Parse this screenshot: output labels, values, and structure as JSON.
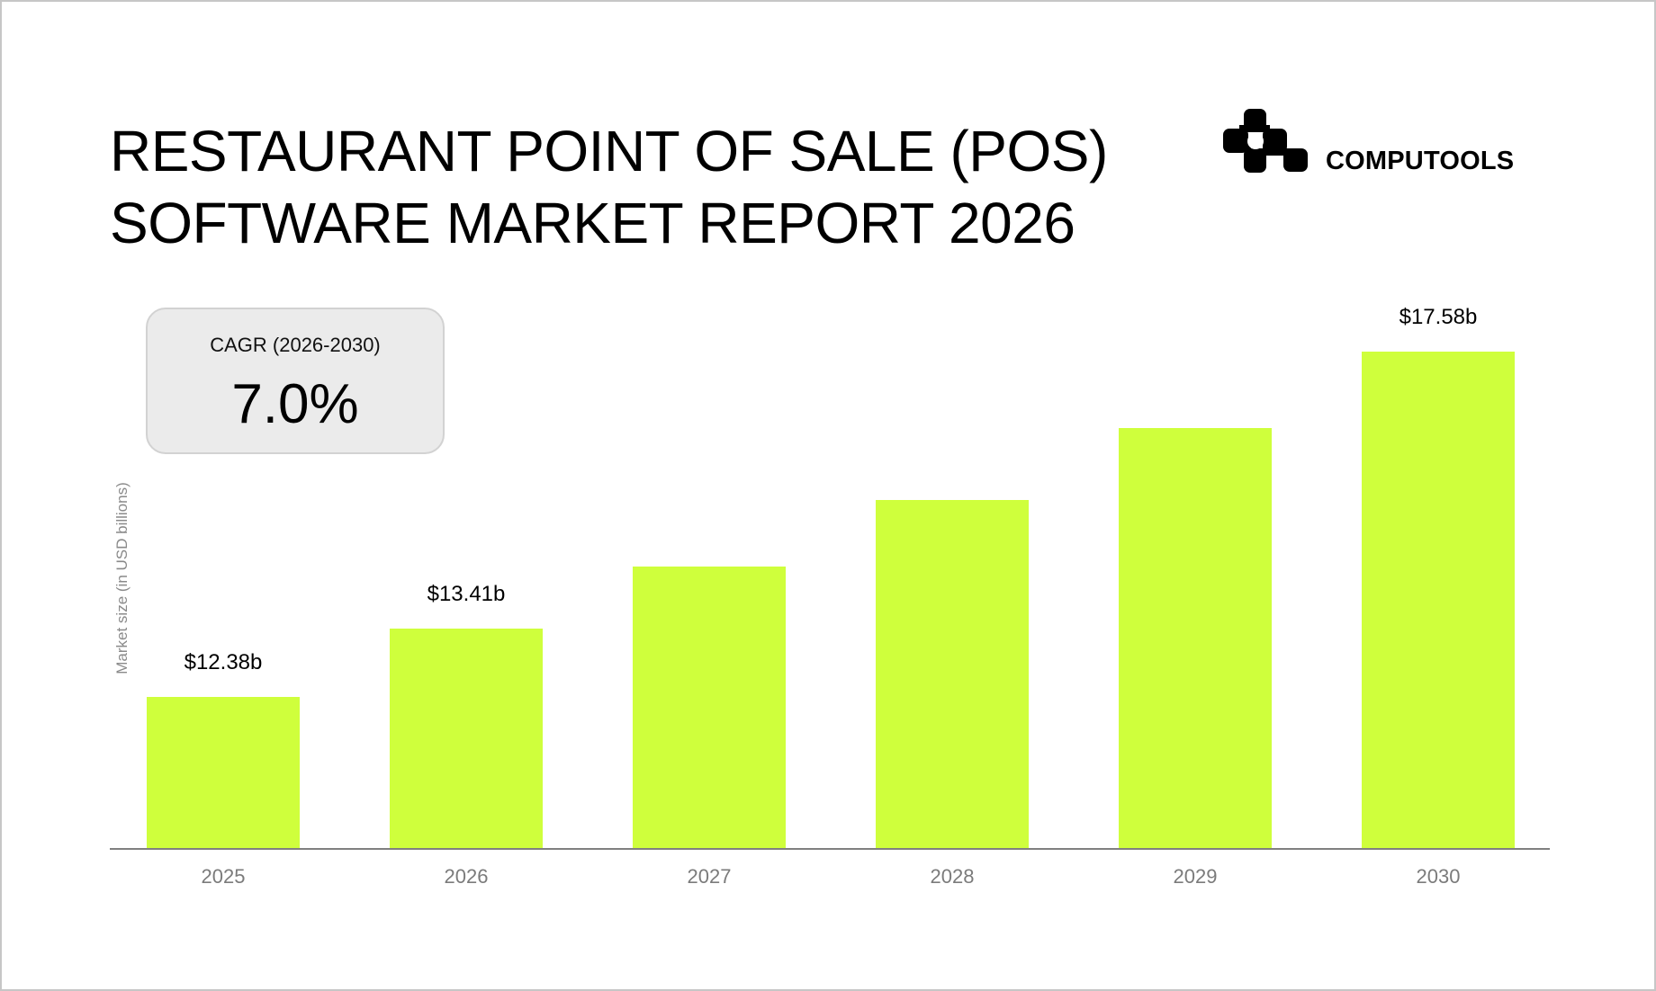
{
  "header": {
    "title_line1": "RESTAURANT POINT OF SALE (POS)",
    "title_line2": "SOFTWARE MARKET REPORT 2026",
    "brand_name": "COMPUTOOLS",
    "logo_icon": "computools-logo-icon"
  },
  "cagr": {
    "label": "CAGR (2026-2030)",
    "value": "7.0%"
  },
  "colors": {
    "bar": "#cfff3c",
    "axis": "#808080",
    "card_bg": "#ebebeb",
    "frame_border": "#c6c6c6"
  },
  "chart_data": {
    "type": "bar",
    "title": "Restaurant Point of Sale (POS) Software Market Report 2026",
    "xlabel": "",
    "ylabel": "Market size (in USD billions)",
    "categories": [
      "2025",
      "2026",
      "2027",
      "2028",
      "2029",
      "2030"
    ],
    "values": [
      12.38,
      13.41,
      14.35,
      15.35,
      16.43,
      17.58
    ],
    "data_labels": [
      "$12.38b",
      "$13.41b",
      "",
      "",
      "",
      "$17.58b"
    ],
    "annotations": [
      {
        "text": "CAGR (2026-2030)",
        "value": "7.0%"
      }
    ],
    "grid": false,
    "legend": null,
    "unit": "USD billions"
  }
}
